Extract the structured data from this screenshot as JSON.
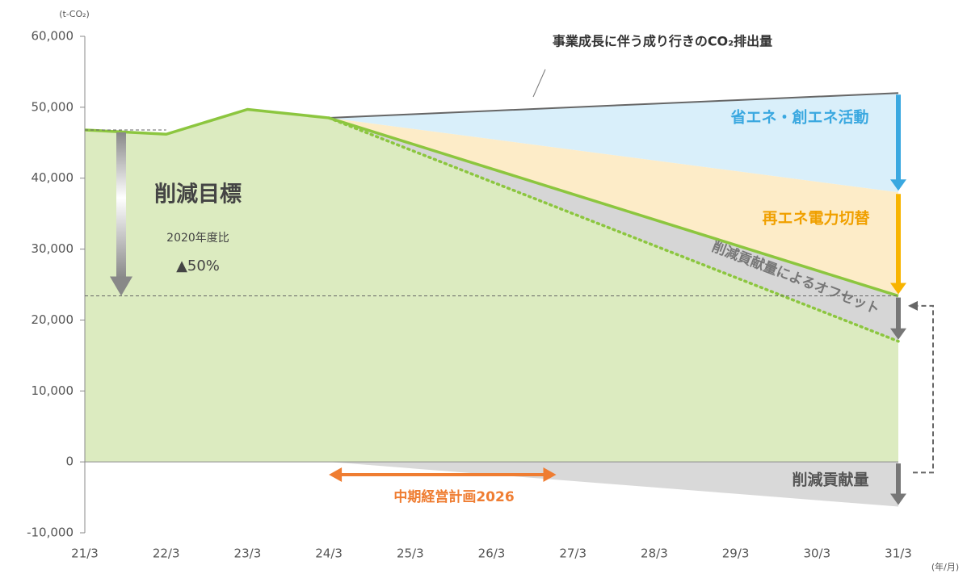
{
  "chart_data": {
    "type": "area",
    "y_unit": "(t-CO₂)",
    "x_unit": "(年/月)",
    "categories": [
      "21/3",
      "22/3",
      "23/3",
      "24/3",
      "25/3",
      "26/3",
      "27/3",
      "28/3",
      "29/3",
      "30/3",
      "31/3"
    ],
    "ylim": [
      -10000,
      60000
    ],
    "yticks": [
      {
        "value": -10000,
        "label": "-10,000"
      },
      0,
      {
        "value": 10000,
        "label": "10,000"
      },
      {
        "value": 20000,
        "label": "20,000"
      },
      {
        "value": 30000,
        "label": "30,000"
      },
      {
        "value": 40000,
        "label": "40,000"
      },
      {
        "value": 50000,
        "label": "50,000"
      },
      {
        "value": 60000,
        "label": "60,000"
      }
    ],
    "series": [
      {
        "color": "#666666",
        "fill": "#d9effa",
        "values": [
          null,
          null,
          null,
          48500,
          49000,
          49500,
          50000,
          50500,
          51000,
          51500,
          52000
        ]
      },
      {
        "color": "#3aa8e0",
        "fill": "#fdecc8",
        "values": [
          null,
          null,
          null,
          48500,
          47000,
          45500,
          44000,
          42500,
          41000,
          39500,
          38000
        ]
      },
      {
        "color": "#8cc63f",
        "fill": "#d6d6d6",
        "arrow_color": "#f8b400",
        "values": [
          46800,
          46200,
          49700,
          48500,
          44914,
          41329,
          37743,
          34157,
          30571,
          26986,
          23400
        ]
      },
      {
        "color": "#8cc63f",
        "fill": "#dcebc0",
        "arrow_color": "#777777",
        "values": [
          null,
          null,
          null,
          48500,
          44000,
          39500,
          35000,
          30500,
          26000,
          21500,
          17000
        ]
      },
      {
        "color": "#777777",
        "fill": "#d9d9d9",
        "values": [
          null,
          null,
          null,
          0,
          -900,
          -1800,
          -2700,
          -3600,
          -4500,
          -5400,
          -6300
        ]
      }
    ],
    "annotations": [
      "事業成長に伴う成り行きのCO₂排出量",
      "省エネ・創エネ活動",
      "再エネ電力切替",
      "削減貢献量によるオフセット",
      "削減貢献量",
      "削減目標",
      "2020年度比",
      "▲50%",
      "中期経営計画2026"
    ]
  }
}
